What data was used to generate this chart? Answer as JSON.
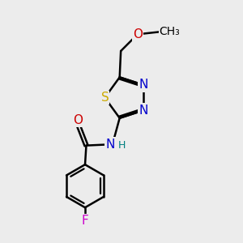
{
  "bg_color": "#ececec",
  "atom_colors": {
    "C": "#000000",
    "N": "#0000cc",
    "O": "#cc0000",
    "S": "#ccaa00",
    "F": "#cc00cc",
    "H": "#008080"
  },
  "bond_color": "#000000",
  "bond_width": 1.8,
  "font_size": 10,
  "fig_size": [
    3.0,
    3.0
  ],
  "dpi": 100
}
